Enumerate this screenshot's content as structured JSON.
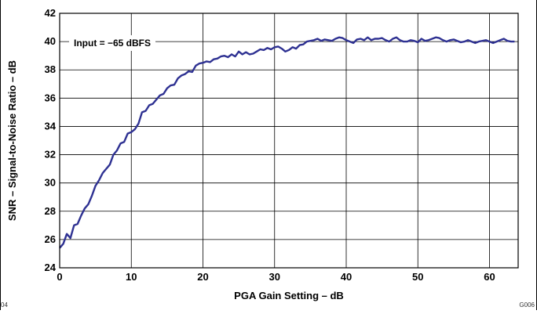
{
  "chart_data": {
    "type": "line",
    "title": "",
    "xlabel": "PGA Gain Setting – dB",
    "ylabel": "SNR – Signal-to-Noise Ratio – dB",
    "xlim": [
      0,
      64
    ],
    "ylim": [
      24,
      42
    ],
    "xticks": [
      0,
      10,
      20,
      30,
      40,
      50,
      60
    ],
    "yticks": [
      24,
      26,
      28,
      30,
      32,
      34,
      36,
      38,
      40,
      42
    ],
    "xtick_labels": [
      "0",
      "10",
      "20",
      "30",
      "40",
      "50",
      "60"
    ],
    "ytick_labels": [
      "24",
      "26",
      "28",
      "30",
      "32",
      "34",
      "36",
      "38",
      "40",
      "42"
    ],
    "grid": true,
    "legend": "none",
    "annotation": "Input = −65 dBFS",
    "figure_id_left": "04",
    "figure_id_right": "G006",
    "line_color": "#2e3192",
    "series": [
      {
        "x": [
          0,
          0.5,
          1,
          1.5,
          2,
          2.5,
          3,
          3.5,
          4,
          4.5,
          5,
          5.5,
          6,
          6.5,
          7,
          7.5,
          8,
          8.5,
          9,
          9.5,
          10,
          10.5,
          11,
          11.5,
          12,
          12.5,
          13,
          13.5,
          14,
          14.5,
          15,
          15.5,
          16,
          16.5,
          17,
          17.5,
          18,
          18.5,
          19,
          19.5,
          20,
          20.5,
          21,
          21.5,
          22,
          22.5,
          23,
          23.5,
          24,
          24.5,
          25,
          25.5,
          26,
          26.5,
          27,
          27.5,
          28,
          28.5,
          29,
          29.5,
          30,
          30.5,
          31,
          31.5,
          32,
          32.5,
          33,
          33.5,
          34,
          34.5,
          35,
          35.5,
          36,
          36.5,
          37,
          37.5,
          38,
          38.5,
          39,
          39.5,
          40,
          40.5,
          41,
          41.5,
          42,
          42.5,
          43,
          43.5,
          44,
          44.5,
          45,
          45.5,
          46,
          46.5,
          47,
          47.5,
          48,
          48.5,
          49,
          49.5,
          50,
          50.5,
          51,
          51.5,
          52,
          52.5,
          53,
          53.5,
          54,
          54.5,
          55,
          55.5,
          56,
          56.5,
          57,
          57.5,
          58,
          58.5,
          59,
          59.5,
          60,
          60.5,
          61,
          61.5,
          62,
          62.5,
          63,
          63.5
        ],
        "values": [
          25.4,
          25.7,
          26.4,
          26.1,
          27.0,
          27.1,
          27.7,
          28.2,
          28.5,
          29.1,
          29.8,
          30.2,
          30.7,
          31.0,
          31.3,
          32.0,
          32.3,
          32.8,
          32.9,
          33.5,
          33.6,
          33.8,
          34.2,
          35.0,
          35.1,
          35.5,
          35.6,
          35.9,
          36.2,
          36.3,
          36.7,
          36.9,
          36.95,
          37.4,
          37.6,
          37.7,
          37.9,
          37.85,
          38.3,
          38.45,
          38.5,
          38.6,
          38.55,
          38.75,
          38.8,
          38.95,
          39.0,
          38.9,
          39.1,
          38.95,
          39.3,
          39.1,
          39.25,
          39.1,
          39.15,
          39.3,
          39.45,
          39.4,
          39.55,
          39.45,
          39.6,
          39.65,
          39.5,
          39.3,
          39.4,
          39.6,
          39.5,
          39.75,
          39.8,
          40.0,
          40.05,
          40.1,
          40.2,
          40.05,
          40.15,
          40.1,
          40.05,
          40.2,
          40.3,
          40.25,
          40.1,
          40.0,
          39.9,
          40.15,
          40.2,
          40.1,
          40.3,
          40.1,
          40.2,
          40.2,
          40.25,
          40.1,
          40.0,
          40.2,
          40.3,
          40.1,
          40.0,
          40.0,
          40.1,
          40.05,
          39.95,
          40.2,
          40.05,
          40.1,
          40.2,
          40.3,
          40.25,
          40.1,
          40.0,
          40.1,
          40.15,
          40.05,
          39.95,
          40.0,
          40.1,
          40.0,
          39.9,
          40.0,
          40.05,
          40.1,
          40.0,
          39.9,
          40.0,
          40.1,
          40.2,
          40.05,
          40.0,
          40.0
        ]
      }
    ]
  }
}
